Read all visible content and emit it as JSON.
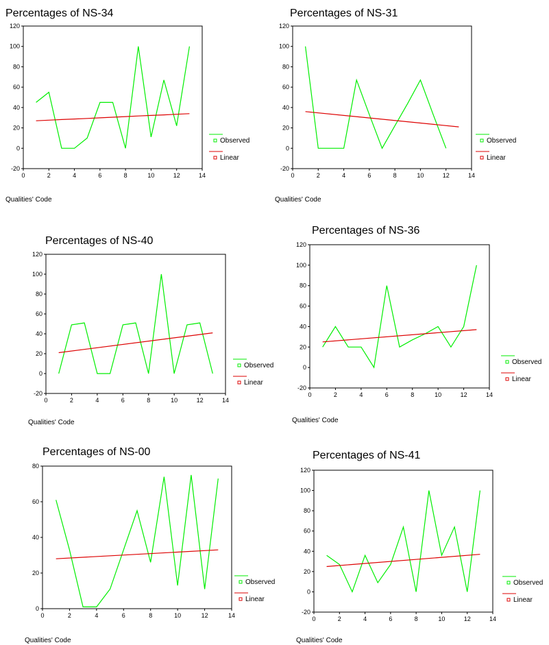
{
  "colors": {
    "observed": "#00ee00",
    "linear": "#dd0000",
    "axis": "#000000"
  },
  "chart_data": [
    {
      "type": "line",
      "title": "Percentages of NS-34",
      "xlabel": "Qualities' Code",
      "ylabel": "",
      "xlim": [
        0,
        14
      ],
      "ylim": [
        -20,
        120
      ],
      "xticks": [
        "0",
        "2",
        "4",
        "6",
        "8",
        "10",
        "12",
        "14"
      ],
      "yticks": [
        "-20",
        "0",
        "20",
        "40",
        "60",
        "80",
        "100",
        "120"
      ],
      "x": [
        1,
        2,
        3,
        4,
        5,
        6,
        7,
        8,
        9,
        10,
        11,
        12,
        13
      ],
      "series": [
        {
          "name": "Observed",
          "values": [
            45,
            55,
            0,
            0,
            10,
            45,
            45,
            0,
            100,
            11,
            67,
            22,
            100
          ]
        },
        {
          "name": "Linear",
          "values": [
            27,
            27.6,
            28.2,
            28.7,
            29.3,
            29.9,
            30.5,
            31.1,
            31.7,
            32.2,
            32.8,
            33.4,
            34
          ]
        }
      ],
      "legend": [
        "Observed",
        "Linear"
      ]
    },
    {
      "type": "line",
      "title": "Percentages of NS-31",
      "xlabel": "Qualities' Code",
      "ylabel": "",
      "xlim": [
        0,
        14
      ],
      "ylim": [
        -20,
        120
      ],
      "xticks": [
        "0",
        "2",
        "4",
        "6",
        "8",
        "10",
        "12",
        "14"
      ],
      "yticks": [
        "-20",
        "0",
        "20",
        "40",
        "60",
        "80",
        "100",
        "120"
      ],
      "x": [
        1,
        2,
        3,
        4,
        5,
        6,
        7,
        8,
        9,
        10,
        11,
        12
      ],
      "series": [
        {
          "name": "Observed",
          "values": [
            100,
            0,
            0,
            0,
            67,
            33,
            0,
            22,
            44,
            67,
            33,
            0
          ]
        },
        {
          "name": "Linear",
          "x": [
            1,
            13
          ],
          "values": [
            36,
            21
          ]
        }
      ],
      "legend": [
        "Observed",
        "Linear"
      ]
    },
    {
      "type": "line",
      "title": "Percentages of NS-40",
      "xlabel": "Qualities' Code",
      "ylabel": "",
      "xlim": [
        0,
        14
      ],
      "ylim": [
        -20,
        120
      ],
      "xticks": [
        "0",
        "2",
        "4",
        "6",
        "8",
        "10",
        "12",
        "14"
      ],
      "yticks": [
        "-20",
        "0",
        "20",
        "40",
        "60",
        "80",
        "100",
        "120"
      ],
      "x": [
        1,
        2,
        3,
        4,
        5,
        6,
        7,
        8,
        9,
        10,
        11,
        12,
        13
      ],
      "series": [
        {
          "name": "Observed",
          "values": [
            0,
            49,
            51,
            0,
            0,
            49,
            51,
            0,
            100,
            0,
            49,
            51,
            0
          ]
        },
        {
          "name": "Linear",
          "x": [
            1,
            13
          ],
          "values": [
            21,
            41
          ]
        }
      ],
      "legend": [
        "Observed",
        "Linear"
      ]
    },
    {
      "type": "line",
      "title": "Percentages of NS-36",
      "xlabel": "Qualities' Code",
      "ylabel": "",
      "xlim": [
        0,
        14
      ],
      "ylim": [
        -20,
        120
      ],
      "xticks": [
        "0",
        "2",
        "4",
        "6",
        "8",
        "10",
        "12",
        "14"
      ],
      "yticks": [
        "-20",
        "0",
        "20",
        "40",
        "60",
        "80",
        "100",
        "120"
      ],
      "x": [
        1,
        2,
        3,
        4,
        5,
        6,
        7,
        8,
        9,
        10,
        11,
        12,
        13
      ],
      "series": [
        {
          "name": "Observed",
          "values": [
            20,
            40,
            20,
            20,
            0,
            80,
            20,
            27,
            33,
            40,
            20,
            40,
            100
          ]
        },
        {
          "name": "Linear",
          "x": [
            1,
            13
          ],
          "values": [
            25,
            37
          ]
        }
      ],
      "legend": [
        "Observed",
        "Linear"
      ]
    },
    {
      "type": "line",
      "title": "Percentages of NS-00",
      "xlabel": "Qualities' Code",
      "ylabel": "",
      "xlim": [
        0,
        14
      ],
      "ylim": [
        0,
        80
      ],
      "xticks": [
        "0",
        "2",
        "4",
        "6",
        "8",
        "10",
        "12",
        "14"
      ],
      "yticks": [
        "0",
        "20",
        "40",
        "60",
        "80"
      ],
      "x": [
        1,
        2,
        3,
        4,
        5,
        6,
        7,
        8,
        9,
        10,
        11,
        12,
        13
      ],
      "series": [
        {
          "name": "Observed",
          "values": [
            61,
            33,
            1,
            1,
            11,
            33,
            55,
            26,
            74,
            13,
            75,
            11,
            73
          ]
        },
        {
          "name": "Linear",
          "x": [
            1,
            13
          ],
          "values": [
            28,
            33
          ]
        }
      ],
      "legend": [
        "Observed",
        "Linear"
      ]
    },
    {
      "type": "line",
      "title": "Percentages of NS-41",
      "xlabel": "Qualities' Code",
      "ylabel": "",
      "xlim": [
        0,
        14
      ],
      "ylim": [
        -20,
        120
      ],
      "xticks": [
        "0",
        "2",
        "4",
        "6",
        "8",
        "10",
        "12",
        "14"
      ],
      "yticks": [
        "-20",
        "0",
        "20",
        "40",
        "60",
        "80",
        "100",
        "120"
      ],
      "x": [
        1,
        2,
        3,
        4,
        5,
        6,
        7,
        8,
        9,
        10,
        11,
        12,
        13
      ],
      "series": [
        {
          "name": "Observed",
          "values": [
            36,
            27,
            0,
            36,
            9,
            27,
            64,
            0,
            100,
            36,
            64,
            0,
            100
          ]
        },
        {
          "name": "Linear",
          "x": [
            1,
            13
          ],
          "values": [
            25,
            37
          ]
        }
      ],
      "legend": [
        "Observed",
        "Linear"
      ]
    }
  ]
}
